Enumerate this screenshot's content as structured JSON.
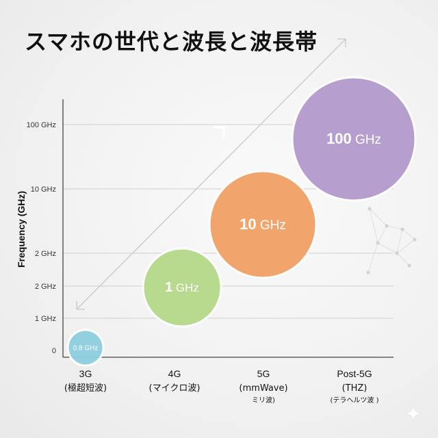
{
  "title": "スマホの世代と波長と波長帯",
  "chart_data": {
    "type": "scatter",
    "ylabel": "Frequency (GHz)",
    "y_ticks": [
      "0",
      "1 GHz",
      "2 GHz",
      "2 GHz",
      "10 GHz",
      "100 GHz"
    ],
    "grid": true,
    "categories": [
      {
        "name": "3G",
        "sub1": "(極超短波)",
        "sub2": ""
      },
      {
        "name": "4G",
        "sub1": "(マイクロ波)",
        "sub2": ""
      },
      {
        "name": "5G",
        "sub1": "(mmWave)",
        "sub2": "ミリ波)"
      },
      {
        "name": "Post-5G",
        "sub1": "(THZ)",
        "sub2": "(テラヘルツ波 )"
      }
    ],
    "points": [
      {
        "category": "3G",
        "value": 0.8,
        "label": "0.8 GHz",
        "color": "#8ecfe0"
      },
      {
        "category": "4G",
        "value": 1,
        "label": "1 GHz",
        "color": "#b5d98a"
      },
      {
        "category": "5G",
        "value": 10,
        "label": "10 GHz",
        "color": "#f2a066"
      },
      {
        "category": "Post-5G",
        "value": 100,
        "label": "100 GHz",
        "color": "#b39bcc"
      }
    ]
  }
}
